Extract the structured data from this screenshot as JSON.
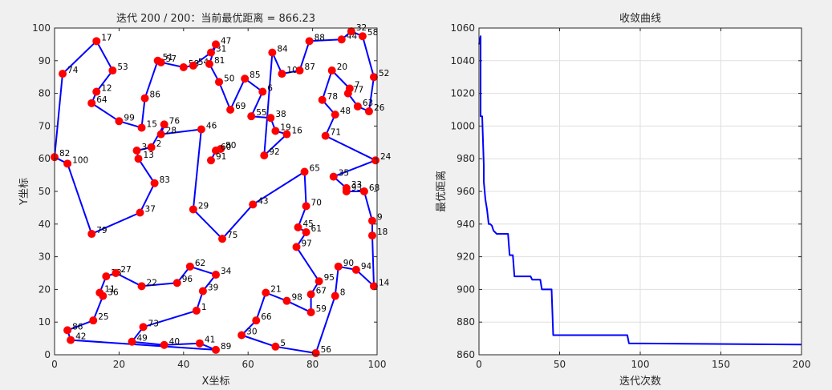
{
  "charts": {
    "tsp": {
      "title": "迭代 200 / 200：当前最优距离 = 866.23",
      "xlabel": "X坐标",
      "ylabel": "Y坐标",
      "xlim": [
        0,
        100
      ],
      "ylim": [
        0,
        100
      ],
      "xticks": [
        0,
        20,
        40,
        60,
        80,
        100
      ],
      "yticks": [
        0,
        10,
        20,
        30,
        40,
        50,
        60,
        70,
        80,
        90,
        100
      ],
      "line_color": "#0000ff",
      "point_color": "#ff0000"
    },
    "conv": {
      "title": "收敛曲线",
      "xlabel": "迭代次数",
      "ylabel": "最优距离",
      "xlim": [
        0,
        200
      ],
      "ylim": [
        860,
        1060
      ],
      "xticks": [
        0,
        50,
        100,
        150,
        200
      ],
      "yticks": [
        860,
        880,
        900,
        920,
        940,
        960,
        980,
        1000,
        1020,
        1040,
        1060
      ],
      "line_color": "#0000ff"
    }
  },
  "chart_data": [
    {
      "type": "scatter",
      "title": "迭代 200 / 200：当前最优距离 = 866.23",
      "xlabel": "X坐标",
      "ylabel": "Y坐标",
      "xlim": [
        0,
        100
      ],
      "ylim": [
        0,
        100
      ],
      "grid": false,
      "route_closed": true,
      "route": [
        {
          "label": "82",
          "x": 0,
          "y": 60.5
        },
        {
          "label": "74",
          "x": 2.5,
          "y": 86
        },
        {
          "label": "17",
          "x": 13,
          "y": 96
        },
        {
          "label": "53",
          "x": 18,
          "y": 87
        },
        {
          "label": "12",
          "x": 13,
          "y": 80.5
        },
        {
          "label": "64",
          "x": 11.5,
          "y": 77
        },
        {
          "label": "99",
          "x": 20,
          "y": 71.5
        },
        {
          "label": "15",
          "x": 27,
          "y": 69.5
        },
        {
          "label": "86",
          "x": 28,
          "y": 78.5
        },
        {
          "label": "51",
          "x": 32,
          "y": 90
        },
        {
          "label": "57",
          "x": 33,
          "y": 89.5
        },
        {
          "label": "58",
          "x": 40,
          "y": 88
        },
        {
          "label": "54",
          "x": 43,
          "y": 88.5
        },
        {
          "label": "31",
          "x": 48.5,
          "y": 92.5
        },
        {
          "label": "47",
          "x": 50,
          "y": 95
        },
        {
          "label": "81",
          "x": 48,
          "y": 89
        },
        {
          "label": "50",
          "x": 51,
          "y": 83.5
        },
        {
          "label": "69",
          "x": 54.5,
          "y": 75
        },
        {
          "label": "85",
          "x": 59,
          "y": 84.5
        },
        {
          "label": "6",
          "x": 64.5,
          "y": 80.5
        },
        {
          "label": "55",
          "x": 61,
          "y": 73
        },
        {
          "label": "38",
          "x": 67,
          "y": 72.5
        },
        {
          "label": "19",
          "x": 68.5,
          "y": 68.5
        },
        {
          "label": "16",
          "x": 72,
          "y": 67.5
        },
        {
          "label": "92",
          "x": 65,
          "y": 61
        },
        {
          "label": "84",
          "x": 67.5,
          "y": 92.5
        },
        {
          "label": "10",
          "x": 70.5,
          "y": 86
        },
        {
          "label": "87",
          "x": 76,
          "y": 87
        },
        {
          "label": "88",
          "x": 79,
          "y": 96
        },
        {
          "label": "44",
          "x": 89,
          "y": 96.5
        },
        {
          "label": "32",
          "x": 92,
          "y": 99
        },
        {
          "label": "58",
          "x": 95.5,
          "y": 97.5
        },
        {
          "label": "52",
          "x": 99,
          "y": 85
        },
        {
          "label": "26",
          "x": 97.5,
          "y": 74.5
        },
        {
          "label": "63",
          "x": 94,
          "y": 76
        },
        {
          "label": "77",
          "x": 91,
          "y": 80
        },
        {
          "label": "7",
          "x": 91.5,
          "y": 81.5
        },
        {
          "label": "20",
          "x": 86,
          "y": 87
        },
        {
          "label": "78",
          "x": 83,
          "y": 78
        },
        {
          "label": "48",
          "x": 87,
          "y": 73.5
        },
        {
          "label": "71",
          "x": 84,
          "y": 67
        },
        {
          "label": "24",
          "x": 99.5,
          "y": 59.5
        },
        {
          "label": "35",
          "x": 86.5,
          "y": 54.5
        },
        {
          "label": "33",
          "x": 90.5,
          "y": 51
        },
        {
          "label": "93",
          "x": 90.5,
          "y": 50
        },
        {
          "label": "68",
          "x": 96,
          "y": 50
        },
        {
          "label": "9",
          "x": 98.5,
          "y": 41
        },
        {
          "label": "18",
          "x": 98.5,
          "y": 36.5
        },
        {
          "label": "14",
          "x": 99,
          "y": 21
        },
        {
          "label": "94",
          "x": 93.5,
          "y": 26
        },
        {
          "label": "90",
          "x": 88,
          "y": 27
        },
        {
          "label": "8",
          "x": 87,
          "y": 18
        },
        {
          "label": "56",
          "x": 81,
          "y": 0.5
        },
        {
          "label": "5",
          "x": 68.5,
          "y": 2.5
        },
        {
          "label": "30",
          "x": 58,
          "y": 6
        },
        {
          "label": "66",
          "x": 62.5,
          "y": 10.5
        },
        {
          "label": "21",
          "x": 65.5,
          "y": 19
        },
        {
          "label": "98",
          "x": 72,
          "y": 16.5
        },
        {
          "label": "59",
          "x": 79.5,
          "y": 13
        },
        {
          "label": "67",
          "x": 79.5,
          "y": 18.5
        },
        {
          "label": "95",
          "x": 82,
          "y": 22.5
        },
        {
          "label": "97",
          "x": 75,
          "y": 33
        },
        {
          "label": "61",
          "x": 78,
          "y": 37.5
        },
        {
          "label": "45",
          "x": 75.5,
          "y": 39
        },
        {
          "label": "70",
          "x": 78,
          "y": 45.5
        },
        {
          "label": "65",
          "x": 77.5,
          "y": 56
        },
        {
          "label": "43",
          "x": 61.5,
          "y": 46
        },
        {
          "label": "75",
          "x": 52,
          "y": 35.5
        },
        {
          "label": "29",
          "x": 43,
          "y": 44.5
        },
        {
          "label": "46",
          "x": 45.5,
          "y": 69
        },
        {
          "label": "28",
          "x": 33,
          "y": 67.5
        },
        {
          "label": "76",
          "x": 34,
          "y": 70.5
        },
        {
          "label": "2",
          "x": 30,
          "y": 63.5
        },
        {
          "label": "3",
          "x": 25.5,
          "y": 62.5
        },
        {
          "label": "13",
          "x": 26,
          "y": 60
        },
        {
          "label": "83",
          "x": 31,
          "y": 52.5
        },
        {
          "label": "37",
          "x": 26.5,
          "y": 43.5
        },
        {
          "label": "79",
          "x": 11.5,
          "y": 37
        },
        {
          "label": "100",
          "x": 4,
          "y": 58.5
        }
      ],
      "route2": [
        {
          "label": "80",
          "x": 51.5,
          "y": 63
        },
        {
          "label": "60",
          "x": 50,
          "y": 62.5
        },
        {
          "label": "91",
          "x": 48.5,
          "y": 59.5
        }
      ],
      "route3": [
        {
          "label": "86",
          "x": 4,
          "y": 7.5
        },
        {
          "label": "25",
          "x": 12,
          "y": 10.5
        },
        {
          "label": "36",
          "x": 15,
          "y": 18
        },
        {
          "label": "11",
          "x": 14,
          "y": 19
        },
        {
          "label": "23",
          "x": 16,
          "y": 24
        },
        {
          "label": "27",
          "x": 19,
          "y": 25
        },
        {
          "label": "22",
          "x": 27,
          "y": 21
        },
        {
          "label": "96",
          "x": 38,
          "y": 22
        },
        {
          "label": "62",
          "x": 42,
          "y": 27
        },
        {
          "label": "34",
          "x": 50,
          "y": 24.5
        },
        {
          "label": "39",
          "x": 46,
          "y": 19.5
        },
        {
          "label": "1",
          "x": 44,
          "y": 13.5
        },
        {
          "label": "73",
          "x": 27.5,
          "y": 8.5
        },
        {
          "label": "49",
          "x": 24,
          "y": 4
        },
        {
          "label": "40",
          "x": 34,
          "y": 3
        },
        {
          "label": "41",
          "x": 45,
          "y": 3.5
        },
        {
          "label": "89",
          "x": 50,
          "y": 1.5
        },
        {
          "label": "42",
          "x": 5,
          "y": 4.5
        }
      ],
      "route3_closed": true
    },
    {
      "type": "line",
      "title": "收敛曲线",
      "xlabel": "迭代次数",
      "ylabel": "最优距离",
      "xlim": [
        0,
        200
      ],
      "ylim": [
        860,
        1060
      ],
      "grid": true,
      "x": [
        0,
        1,
        1,
        2,
        3,
        3,
        4,
        5,
        6,
        7,
        8,
        9,
        10,
        11,
        12,
        13,
        18,
        19,
        20,
        21,
        22,
        23,
        24,
        32,
        33,
        38,
        39,
        43,
        44,
        45,
        46,
        91,
        92,
        93,
        200
      ],
      "y": [
        1050,
        1055,
        1006,
        1006,
        976,
        966,
        955,
        949,
        940,
        940,
        939,
        936,
        935,
        934,
        934,
        934,
        934,
        921,
        921,
        921,
        908,
        908,
        908,
        908,
        906,
        906,
        900,
        900,
        900,
        900,
        872,
        872,
        872,
        867,
        866.23
      ]
    }
  ]
}
